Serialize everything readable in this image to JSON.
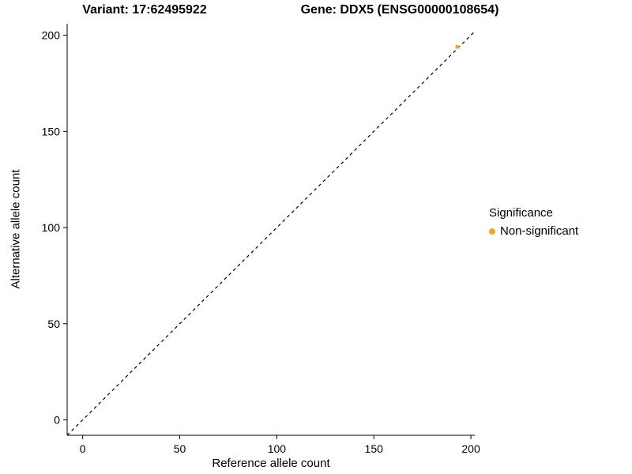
{
  "chart_data": {
    "type": "scatter",
    "titles": {
      "variant": "Variant: 17:62495922",
      "gene": "Gene: DDX5 (ENSG00000108654)"
    },
    "xlabel": "Reference allele count",
    "ylabel": "Alternative allele count",
    "x_ticks": [
      0,
      50,
      100,
      150,
      200
    ],
    "y_ticks": [
      0,
      50,
      100,
      150,
      200
    ],
    "xlim": [
      -8,
      202
    ],
    "ylim": [
      -8,
      206
    ],
    "grid": false,
    "identity_line": {
      "style": "dashed",
      "color": "#000000",
      "from": [
        -8,
        -8
      ],
      "to": [
        202,
        202
      ]
    },
    "series": [
      {
        "name": "Non-significant",
        "color": "#F5A623",
        "points": [
          [
            193,
            194
          ]
        ]
      }
    ],
    "legend": {
      "position": "right",
      "title": "Significance",
      "items": [
        {
          "label": "Non-significant",
          "color": "#F5A623"
        }
      ]
    }
  }
}
